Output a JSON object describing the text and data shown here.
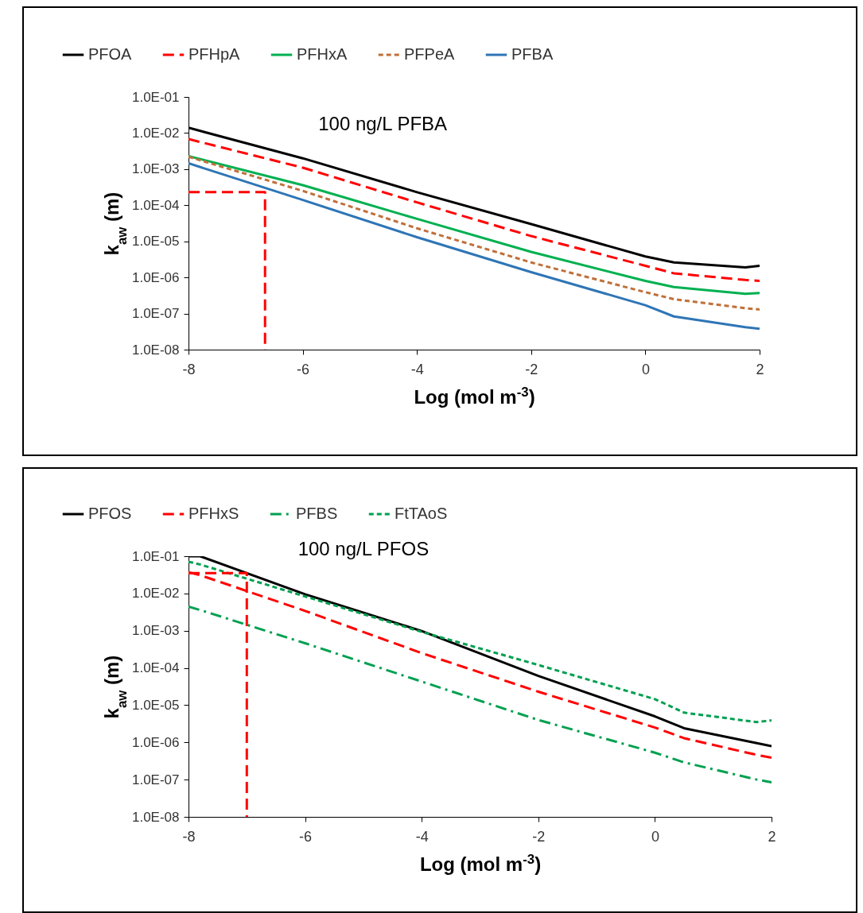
{
  "chart_data": [
    {
      "type": "line",
      "xlabel": "Log (mol m$^{-3}$)",
      "ylabel": "k$_{aw}$ (m)",
      "legend": "top",
      "log": true,
      "annotations": [
        "100 ng/L PFBA"
      ],
      "xlim": [
        -8,
        2
      ],
      "xticks": [
        -8,
        -6,
        -4,
        -2,
        0,
        2
      ],
      "ylim": [
        1e-08,
        0.1
      ],
      "yticks": [
        {
          "value": 1e-08,
          "label": "1.0E-08"
        },
        {
          "value": 1e-07,
          "label": "1.0E-07"
        },
        {
          "value": 1e-06,
          "label": "1.0E-06"
        },
        {
          "value": 1e-05,
          "label": "1.0E-05"
        },
        {
          "value": 0.0001,
          "label": "1.0E-04"
        },
        {
          "value": 0.001,
          "label": "1.0E-03"
        },
        {
          "value": 0.01,
          "label": "1.0E-02"
        },
        {
          "value": 0.1,
          "label": "1.0E-01"
        }
      ],
      "x": [
        -8,
        -6,
        -4,
        -2,
        0,
        0.5,
        1.75,
        2
      ],
      "series": [
        {
          "name": "PFOA",
          "color": "#000000",
          "line_style": "solid",
          "values": [
            0.014,
            0.002,
            0.00023,
            3e-05,
            3.8e-06,
            2.6e-06,
            1.9e-06,
            2.1e-06
          ]
        },
        {
          "name": "PFHpA",
          "color": "#ff0000",
          "line_style": "dashed",
          "values": [
            0.0068,
            0.0011,
            0.00012,
            1.4e-05,
            2.1e-06,
            1.3e-06,
            8.5e-07,
            8e-07
          ]
        },
        {
          "name": "PFHxA",
          "color": "#00b050",
          "line_style": "solid",
          "values": [
            0.0023,
            0.00036,
            4.2e-05,
            5.1e-06,
            8e-07,
            5.4e-07,
            3.5e-07,
            3.7e-07
          ]
        },
        {
          "name": "PFPeA",
          "color": "#c0703a",
          "line_style": "dotted",
          "values": [
            0.0022,
            0.00025,
            2.3e-05,
            2.6e-06,
            3.9e-07,
            2.5e-07,
            1.4e-07,
            1.3e-07
          ]
        },
        {
          "name": "PFBA",
          "color": "#2e75b6",
          "line_style": "solid",
          "values": [
            0.00145,
            0.00014,
            1.3e-05,
            1.4e-06,
            1.7e-07,
            8.3e-08,
            4.2e-08,
            3.8e-08
          ]
        },
        {
          "color": "#ff0000",
          "line_style": "dashed",
          "x": [
            -8,
            -6.66,
            -6.66
          ],
          "values": [
            0.00023,
            0.00023,
            1e-08
          ]
        }
      ]
    },
    {
      "type": "line",
      "xlabel": "Log (mol m$^{-3}$)",
      "ylabel": "k$_{aw}$ (m)",
      "legend": "top",
      "log": true,
      "annotations": [
        "100 ng/L PFOS"
      ],
      "xlim": [
        -8,
        2
      ],
      "xticks": [
        -8,
        -6,
        -4,
        -2,
        0,
        2
      ],
      "ylim": [
        1e-08,
        0.1
      ],
      "yticks": [
        {
          "value": 1e-08,
          "label": "1.0E-08"
        },
        {
          "value": 1e-07,
          "label": "1.0E-07"
        },
        {
          "value": 1e-06,
          "label": "1.0E-06"
        },
        {
          "value": 1e-05,
          "label": "1.0E-05"
        },
        {
          "value": 0.0001,
          "label": "1.0E-04"
        },
        {
          "value": 0.001,
          "label": "1.0E-03"
        },
        {
          "value": 0.01,
          "label": "1.0E-02"
        },
        {
          "value": 0.1,
          "label": "1.0E-01"
        }
      ],
      "x": [
        -8,
        -7.8,
        -6,
        -4,
        -2,
        0,
        0.5,
        1.75,
        2
      ],
      "series": [
        {
          "name": "PFOS",
          "color": "#000000",
          "line_style": "solid",
          "values": [
            0.1,
            0.1,
            0.0095,
            0.00098,
            6.1e-05,
            5e-06,
            2.4e-06,
            9.5e-07,
            7.9e-07
          ]
        },
        {
          "name": "PFHxS",
          "color": "#ff0000",
          "line_style": "dashed",
          "values": [
            0.037,
            0.031,
            0.0034,
            0.00025,
            2.3e-05,
            2.5e-06,
            1.3e-06,
            4.6e-07,
            3.9e-07
          ]
        },
        {
          "name": "PFBS",
          "color": "#00a050",
          "line_style": "dashdot",
          "values": [
            0.0044,
            0.0036,
            0.00046,
            4.3e-05,
            4e-06,
            5.3e-07,
            2.9e-07,
            1e-07,
            8.5e-08
          ]
        },
        {
          "name": "FtTAoS",
          "color": "#00a050",
          "line_style": "dotted",
          "values": [
            0.071,
            0.06,
            0.0083,
            0.00093,
            0.00012,
            1.45e-05,
            6.3e-06,
            3.5e-06,
            3.9e-06
          ]
        },
        {
          "color": "#ff0000",
          "line_style": "dashed",
          "x": [
            -8,
            -7,
            -7
          ],
          "values": [
            0.035,
            0.035,
            1e-08
          ]
        }
      ]
    }
  ]
}
